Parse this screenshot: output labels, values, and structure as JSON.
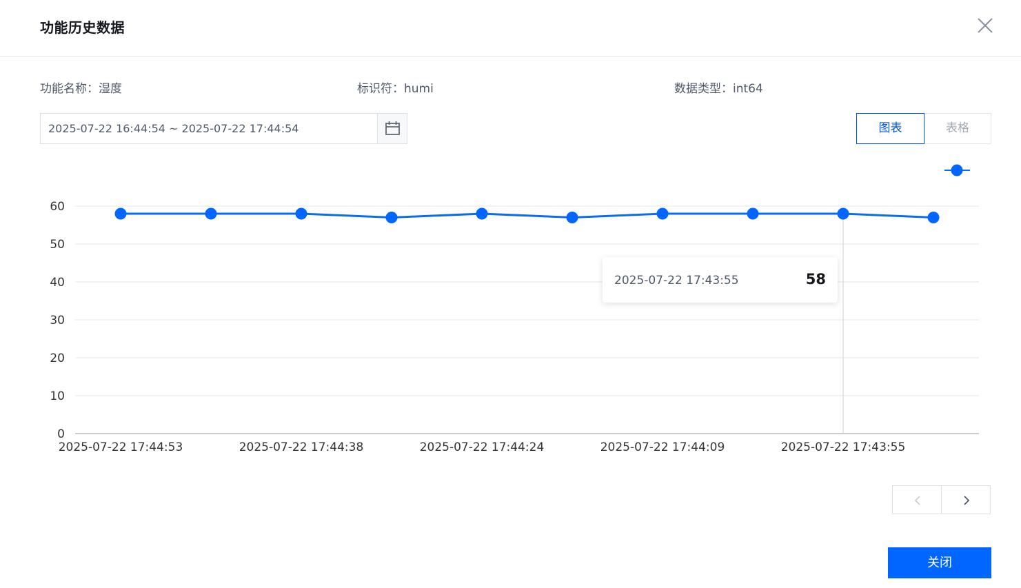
{
  "dialog": {
    "title": "功能历史数据",
    "close_icon": "close-icon"
  },
  "meta": {
    "name": "功能名称：湿度",
    "identifier": "标识符：humi",
    "data_type": "数据类型：int64"
  },
  "range": {
    "value": "2025-07-22 16:44:54 ~ 2025-07-22 17:44:54",
    "icon": "calendar-icon"
  },
  "view_toggle": {
    "chart_label": "图表",
    "table_label": "表格",
    "active": "chart"
  },
  "tooltip": {
    "time": "2025-07-22 17:43:55",
    "value": "58"
  },
  "pager": {
    "prev_icon": "chevron-left-icon",
    "next_icon": "chevron-right-icon"
  },
  "footer": {
    "close_label": "关闭"
  },
  "colors": {
    "primary": "#0066ff",
    "line": "#0a6cf0",
    "grid": "#e1e4ea"
  },
  "chart_data": {
    "type": "line",
    "y_ticks": [
      "0",
      "10",
      "20",
      "30",
      "40",
      "50",
      "60"
    ],
    "x_tick_labels": [
      "2025-07-22 17:44:53",
      "2025-07-22 17:44:38",
      "2025-07-22 17:44:24",
      "2025-07-22 17:44:09",
      "2025-07-22 17:43:55"
    ],
    "values": [
      58,
      58,
      58,
      57,
      58,
      57,
      58,
      58,
      58,
      57
    ],
    "ylim": [
      0,
      60
    ],
    "grid": true,
    "legend_position": "top-right",
    "highlight_index": 8
  }
}
